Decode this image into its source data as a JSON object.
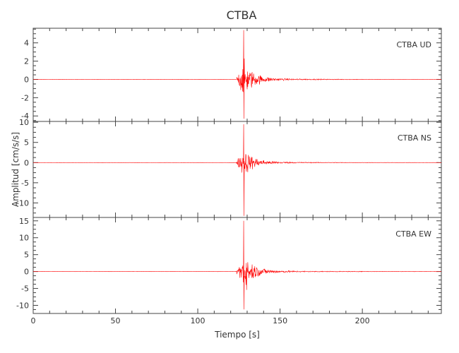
{
  "chart_data": {
    "type": "line",
    "title": "CTBA",
    "xlabel": "Tiempo [s]",
    "ylabel": "Amplitud [cm/s/s]",
    "xlim": [
      0,
      248
    ],
    "x_ticks": [
      0,
      50,
      100,
      150,
      200
    ],
    "grid": false,
    "line_color": "#ff0000",
    "axis_color": "#444444",
    "panels": [
      {
        "label": "CTBA    UD",
        "ylim": [
          -4.6,
          5.6
        ],
        "y_ticks": [
          -4,
          -2,
          0,
          2,
          4
        ],
        "peak_positive": 5.4,
        "peak_negative": -4.3
      },
      {
        "label": "CTBA    NS",
        "ylim": [
          -13.6,
          10.2
        ],
        "y_ticks": [
          -10,
          -5,
          0,
          5,
          10
        ],
        "peak_positive": 9.5,
        "peak_negative": -13.2
      },
      {
        "label": "CTBA    EW",
        "ylim": [
          -12.4,
          16.0
        ],
        "y_ticks": [
          -10,
          -5,
          0,
          5,
          10,
          15
        ],
        "peak_positive": 15.0,
        "peak_negative": -11.2
      }
    ],
    "event": {
      "onset_s": 123.5,
      "peak_s": 128.0,
      "decay_end_s": 160
    }
  }
}
